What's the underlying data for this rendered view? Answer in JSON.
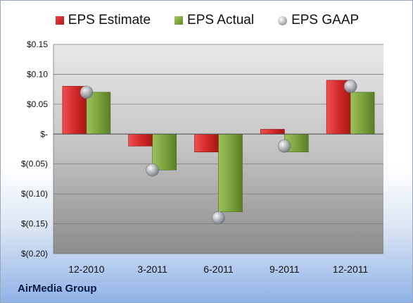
{
  "chart_data": {
    "type": "bar",
    "categories": [
      "12-2010",
      "3-2011",
      "6-2011",
      "9-2011",
      "12-2011"
    ],
    "series": [
      {
        "name": "EPS Estimate",
        "values": [
          0.08,
          -0.02,
          -0.03,
          0.008,
          0.09
        ],
        "color": "#d42a2a"
      },
      {
        "name": "EPS Actual",
        "values": [
          0.07,
          -0.06,
          -0.13,
          -0.03,
          0.07
        ],
        "color": "#7da33e"
      },
      {
        "name": "EPS GAAP",
        "values": [
          0.07,
          -0.06,
          -0.14,
          -0.02,
          0.08
        ],
        "color": "#a0a6ae"
      }
    ],
    "ylim": [
      -0.2,
      0.15
    ],
    "yticks": [
      0.15,
      0.1,
      0.05,
      0,
      -0.05,
      -0.1,
      -0.15,
      -0.2
    ],
    "ytick_labels": [
      "$0.15",
      "$0.10",
      "$0.05",
      "$-",
      "$(0.05)",
      "$(0.10)",
      "$(0.15)",
      "$(0.20)"
    ],
    "grid": true,
    "legend_position": "top"
  },
  "footer": {
    "company": "AirMedia Group"
  }
}
